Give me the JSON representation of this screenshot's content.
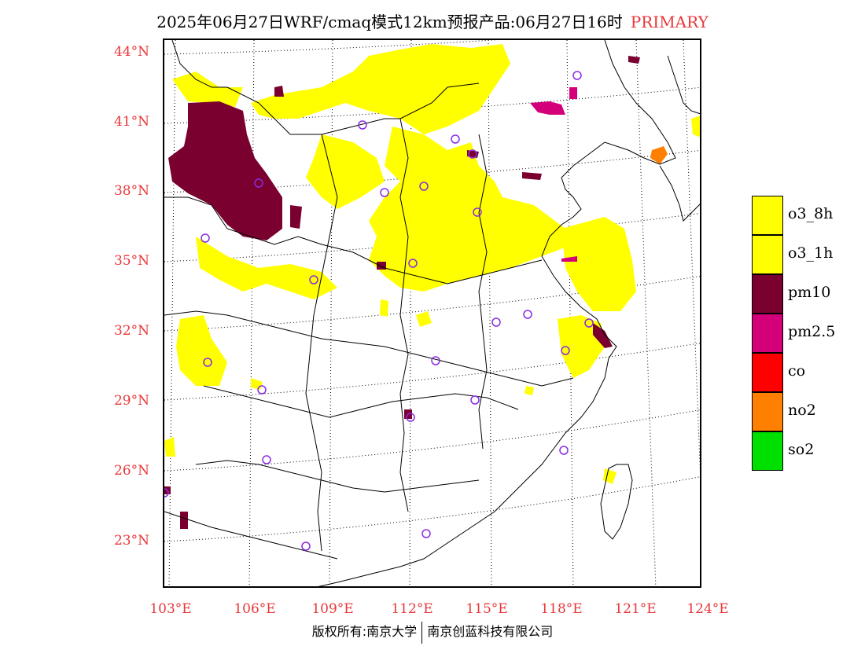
{
  "title": {
    "main": "2025年06月27日WRF/cmaq模式12km预报产品:06月27日16时",
    "tag": "PRIMARY"
  },
  "lat_labels": [
    "44°N",
    "41°N",
    "38°N",
    "35°N",
    "32°N",
    "29°N",
    "26°N",
    "23°N"
  ],
  "lon_labels": [
    "103°E",
    "106°E",
    "109°E",
    "112°E",
    "115°E",
    "118°E",
    "121°E",
    "124°E"
  ],
  "legend": [
    {
      "label": "o3_8h",
      "color": "#ffff00"
    },
    {
      "label": "o3_1h",
      "color": "#ffff00"
    },
    {
      "label": "pm10",
      "color": "#7a0030"
    },
    {
      "label": "pm2.5",
      "color": "#d4007a"
    },
    {
      "label": "co",
      "color": "#ff0000"
    },
    {
      "label": "no2",
      "color": "#ff8000"
    },
    {
      "label": "so2",
      "color": "#00e000"
    }
  ],
  "credit": {
    "left": "版权所有:南京大学",
    "right": "南京创蓝科技有限公司"
  },
  "colors": {
    "accent": "#e8383b",
    "o3": "#ffff00",
    "pm10": "#7a0030",
    "pm25": "#d4007a",
    "no2": "#ff8000",
    "station": "#8a2be2"
  }
}
